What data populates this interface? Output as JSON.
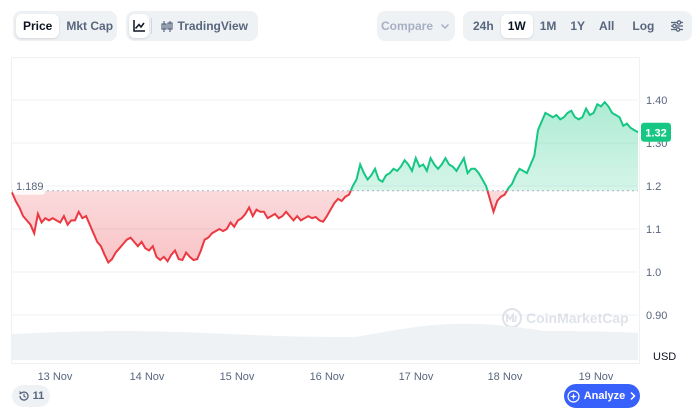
{
  "toolbar": {
    "type_tabs": [
      {
        "label": "Price",
        "active": true
      },
      {
        "label": "Mkt Cap",
        "active": false
      }
    ],
    "view": {
      "tradingview_label": "TradingView",
      "line_icon": "line-chart-icon",
      "tv_icon": "candles-icon"
    },
    "compare_label": "Compare",
    "ranges": [
      {
        "label": "24h",
        "active": false
      },
      {
        "label": "1W",
        "active": true
      },
      {
        "label": "1M",
        "active": false
      },
      {
        "label": "1Y",
        "active": false
      },
      {
        "label": "All",
        "active": false
      }
    ],
    "log_label": "Log",
    "settings_icon": "sliders-icon"
  },
  "chart_data": {
    "type": "area",
    "baseline": 1.189,
    "baseline_label": "1.189",
    "current_price_label": "1.32",
    "y_ticks": [
      "1.40",
      "1.30",
      "1.2",
      "1.1",
      "1.0",
      "0.90"
    ],
    "y_unit": "USD",
    "x_labels": [
      "13 Nov",
      "14 Nov",
      "15 Nov",
      "16 Nov",
      "17 Nov",
      "18 Nov",
      "19 Nov"
    ],
    "ylim": [
      0.85,
      1.45
    ],
    "colors": {
      "up": "#16c784",
      "down": "#ea3943",
      "up_fill": "#16c784",
      "down_fill": "#ea3943"
    },
    "watermark": "CoinMarketCap",
    "values": [
      1.185,
      1.165,
      1.15,
      1.13,
      1.12,
      1.11,
      1.09,
      1.135,
      1.115,
      1.125,
      1.12,
      1.125,
      1.12,
      1.115,
      1.13,
      1.11,
      1.12,
      1.12,
      1.14,
      1.125,
      1.13,
      1.11,
      1.09,
      1.07,
      1.06,
      1.04,
      1.022,
      1.03,
      1.045,
      1.055,
      1.065,
      1.075,
      1.08,
      1.07,
      1.06,
      1.07,
      1.055,
      1.05,
      1.06,
      1.035,
      1.028,
      1.035,
      1.025,
      1.04,
      1.05,
      1.03,
      1.028,
      1.045,
      1.035,
      1.028,
      1.03,
      1.05,
      1.075,
      1.08,
      1.09,
      1.095,
      1.1,
      1.095,
      1.1,
      1.115,
      1.105,
      1.12,
      1.125,
      1.135,
      1.15,
      1.13,
      1.145,
      1.14,
      1.14,
      1.125,
      1.13,
      1.135,
      1.125,
      1.13,
      1.14,
      1.13,
      1.12,
      1.13,
      1.12,
      1.125,
      1.13,
      1.125,
      1.128,
      1.12,
      1.117,
      1.13,
      1.145,
      1.16,
      1.17,
      1.165,
      1.175,
      1.18,
      1.2,
      1.215,
      1.25,
      1.23,
      1.215,
      1.225,
      1.24,
      1.215,
      1.21,
      1.225,
      1.23,
      1.24,
      1.235,
      1.245,
      1.26,
      1.25,
      1.235,
      1.265,
      1.245,
      1.25,
      1.235,
      1.265,
      1.25,
      1.24,
      1.25,
      1.265,
      1.25,
      1.245,
      1.235,
      1.25,
      1.265,
      1.23,
      1.24,
      1.24,
      1.23,
      1.215,
      1.2,
      1.17,
      1.14,
      1.165,
      1.175,
      1.18,
      1.195,
      1.205,
      1.225,
      1.24,
      1.235,
      1.23,
      1.25,
      1.27,
      1.33,
      1.35,
      1.37,
      1.365,
      1.36,
      1.365,
      1.355,
      1.36,
      1.37,
      1.375,
      1.36,
      1.355,
      1.36,
      1.38,
      1.365,
      1.37,
      1.39,
      1.385,
      1.395,
      1.385,
      1.37,
      1.365,
      1.36,
      1.34,
      1.345,
      1.335,
      1.33,
      1.325
    ]
  },
  "footer": {
    "history_count": "11",
    "history_icon": "history-icon",
    "analyze_label": "Analyze",
    "analyze_icon": "analyze-sparkle-icon",
    "chevron_icon": "chevron-right-icon"
  }
}
